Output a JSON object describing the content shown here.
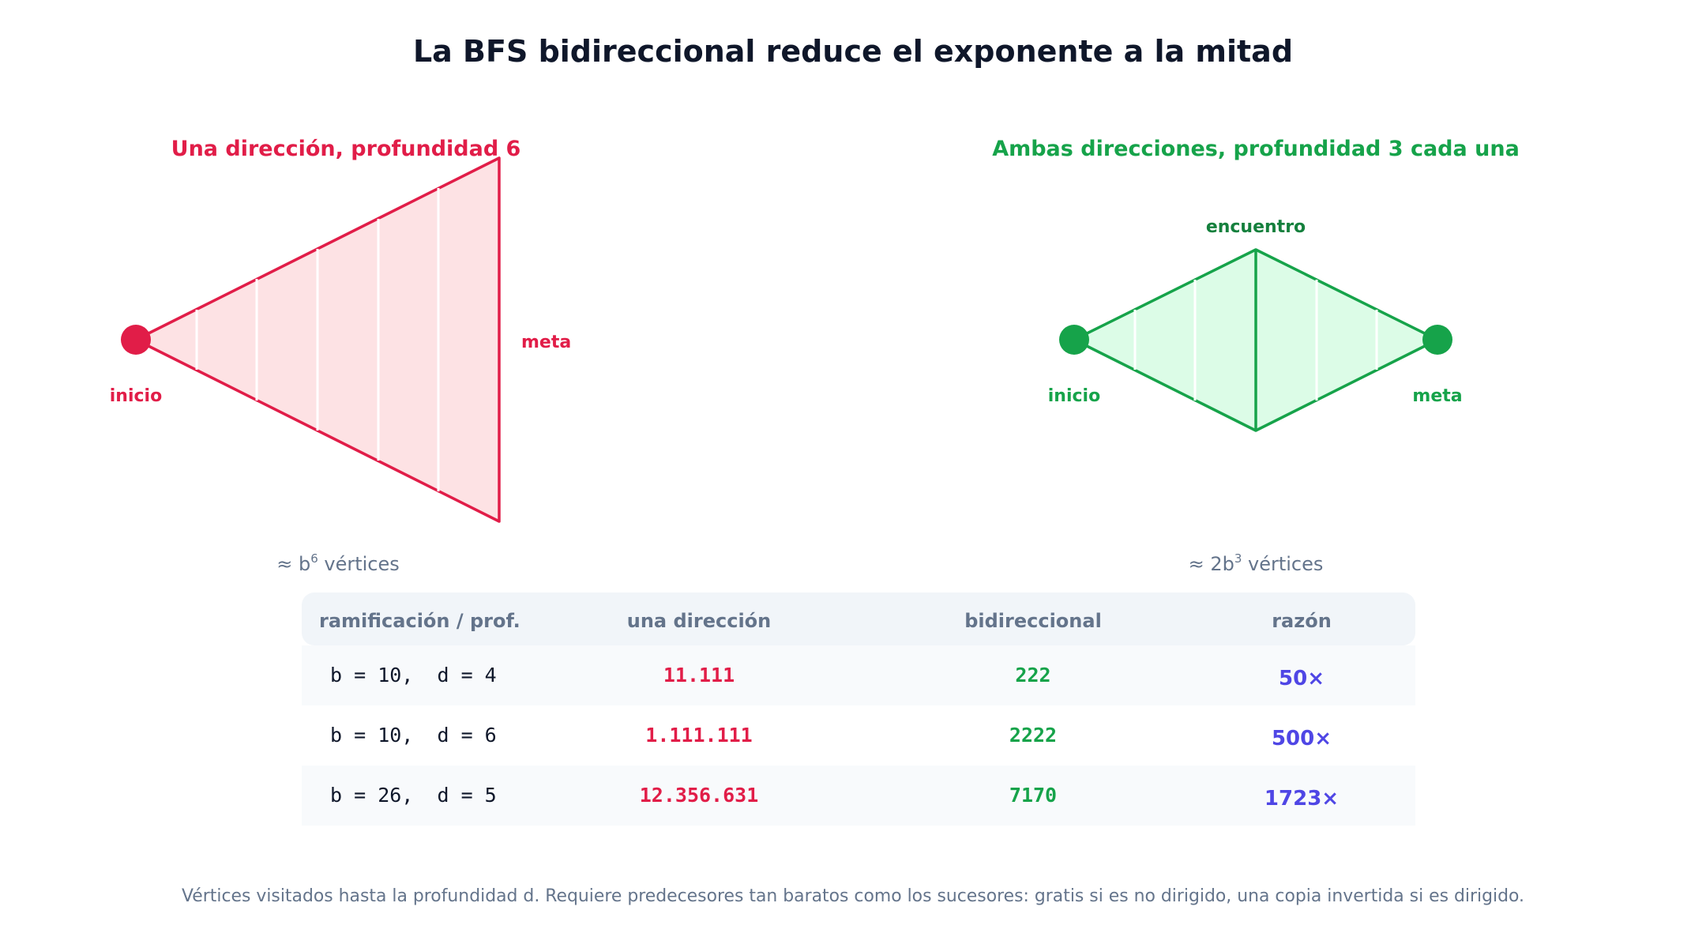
{
  "title": "La BFS bidireccional reduce el exponente a la mitad",
  "left": {
    "heading": "Una dirección, profundidad 6",
    "start_label": "inicio",
    "goal_label": "meta",
    "count_prefix": "≈ b",
    "count_exp": "6",
    "count_suffix": " vértices"
  },
  "right": {
    "heading": "Ambas direcciones, profundidad 3 cada una",
    "meet_label": "encuentro",
    "start_label": "inicio",
    "goal_label": "meta",
    "count_prefix": "≈ 2b",
    "count_exp": "3",
    "count_suffix": " vértices"
  },
  "table": {
    "headers": [
      "ramificación / prof.",
      "una dirección",
      "bidireccional",
      "razón"
    ],
    "rows": [
      {
        "params": "b = 10,  d = 4",
        "one": "11.111",
        "bi": "222",
        "ratio": "50×"
      },
      {
        "params": "b = 10,  d = 6",
        "one": "1.111.111",
        "bi": "2222",
        "ratio": "500×"
      },
      {
        "params": "b = 26,  d = 5",
        "one": "12.356.631",
        "bi": "7170",
        "ratio": "1723×"
      }
    ]
  },
  "footnote": "Vértices visitados hasta la profundidad d. Requiere predecesores tan baratos como los sucesores: gratis si es no dirigido, una copia invertida si es dirigido.",
  "colors": {
    "red": "#e11d48",
    "red_fill": "#fde2e4",
    "green": "#16a34a",
    "green_fill": "#dcfce7",
    "purple": "#4f46e5",
    "muted": "#64748b",
    "header_bg": "#f1f5f9",
    "row_alt_bg": "#f8fafc"
  }
}
